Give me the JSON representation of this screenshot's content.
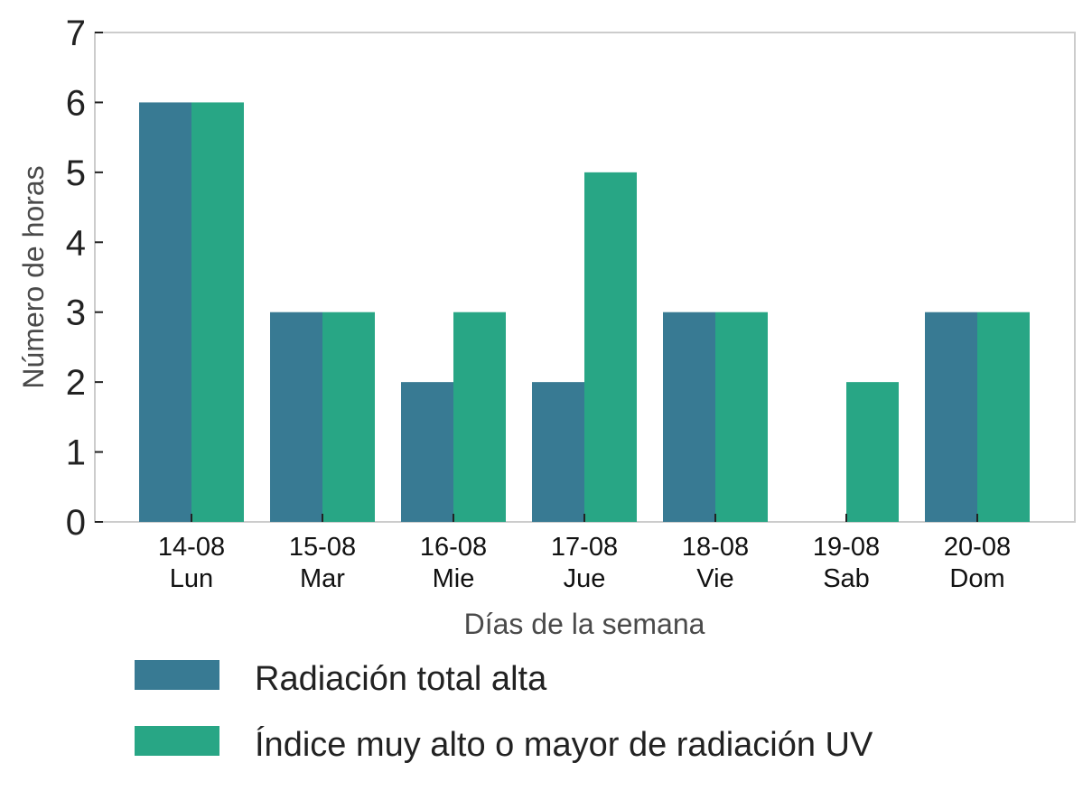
{
  "chart_data": {
    "type": "bar",
    "categories": [
      [
        "14-08",
        "Lun"
      ],
      [
        "15-08",
        "Mar"
      ],
      [
        "16-08",
        "Mie"
      ],
      [
        "17-08",
        "Jue"
      ],
      [
        "18-08",
        "Vie"
      ],
      [
        "19-08",
        "Sab"
      ],
      [
        "20-08",
        "Dom"
      ]
    ],
    "series": [
      {
        "name": "Radiación total alta",
        "color": "#387a93",
        "values": [
          6,
          3,
          2,
          2,
          3,
          0,
          3
        ]
      },
      {
        "name": "Índice muy alto o mayor de radiación UV",
        "color": "#28a685",
        "values": [
          6,
          3,
          3,
          5,
          3,
          2,
          3
        ]
      }
    ],
    "xlabel": "Días de la semana",
    "ylabel": "Número de horas",
    "ylim": [
      0,
      7
    ],
    "yticks": [
      0,
      1,
      2,
      3,
      4,
      5,
      6,
      7
    ],
    "grid": false,
    "legend_position": "bottom"
  }
}
